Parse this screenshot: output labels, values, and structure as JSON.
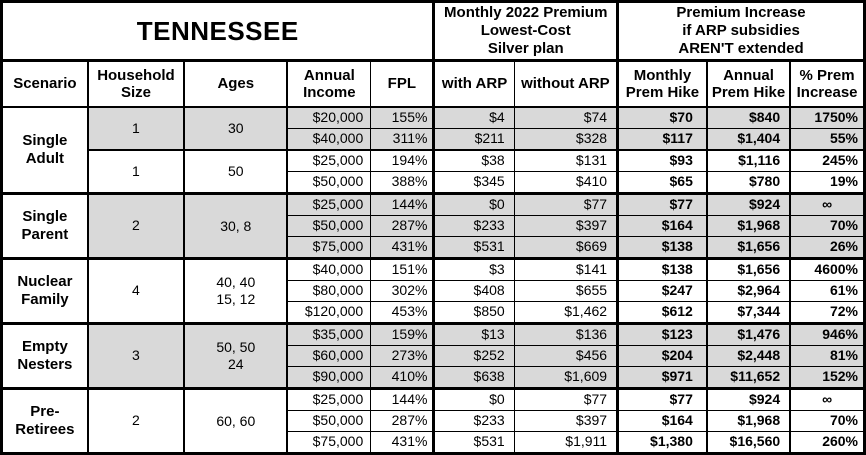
{
  "table": {
    "title": "TENNESSEE",
    "sections": {
      "premium": "Monthly 2022 Premium\nLowest-Cost\nSilver plan",
      "increase": "Premium Increase\nif ARP subsidies\nAREN'T extended"
    },
    "columns": [
      "Scenario",
      "Household\nSize",
      "Ages",
      "Annual\nIncome",
      "FPL",
      "with ARP",
      "without ARP",
      "Monthly\nPrem Hike",
      "Annual\nPrem Hike",
      "% Prem\nIncrease"
    ],
    "shade_color": "#d9d9d9",
    "groups": [
      {
        "scenario": "Single\nAdult",
        "subgroups": [
          {
            "size": "1",
            "ages": "30",
            "shaded": true,
            "rows": [
              {
                "income": "$20,000",
                "fpl": "155%",
                "with_arp": "$4",
                "without_arp": "$74",
                "monthly_hike": "$70",
                "annual_hike": "$840",
                "pct_increase": "1750%"
              },
              {
                "income": "$40,000",
                "fpl": "311%",
                "with_arp": "$211",
                "without_arp": "$328",
                "monthly_hike": "$117",
                "annual_hike": "$1,404",
                "pct_increase": "55%"
              }
            ]
          },
          {
            "size": "1",
            "ages": "50",
            "shaded": false,
            "rows": [
              {
                "income": "$25,000",
                "fpl": "194%",
                "with_arp": "$38",
                "without_arp": "$131",
                "monthly_hike": "$93",
                "annual_hike": "$1,116",
                "pct_increase": "245%"
              },
              {
                "income": "$50,000",
                "fpl": "388%",
                "with_arp": "$345",
                "without_arp": "$410",
                "monthly_hike": "$65",
                "annual_hike": "$780",
                "pct_increase": "19%"
              }
            ]
          }
        ]
      },
      {
        "scenario": "Single\nParent",
        "subgroups": [
          {
            "size": "2",
            "ages": "30, 8",
            "shaded": true,
            "rows": [
              {
                "income": "$25,000",
                "fpl": "144%",
                "with_arp": "$0",
                "without_arp": "$77",
                "monthly_hike": "$77",
                "annual_hike": "$924",
                "pct_increase": "∞"
              },
              {
                "income": "$50,000",
                "fpl": "287%",
                "with_arp": "$233",
                "without_arp": "$397",
                "monthly_hike": "$164",
                "annual_hike": "$1,968",
                "pct_increase": "70%"
              },
              {
                "income": "$75,000",
                "fpl": "431%",
                "with_arp": "$531",
                "without_arp": "$669",
                "monthly_hike": "$138",
                "annual_hike": "$1,656",
                "pct_increase": "26%"
              }
            ]
          }
        ]
      },
      {
        "scenario": "Nuclear\nFamily",
        "subgroups": [
          {
            "size": "4",
            "ages": "40, 40\n15, 12",
            "shaded": false,
            "rows": [
              {
                "income": "$40,000",
                "fpl": "151%",
                "with_arp": "$3",
                "without_arp": "$141",
                "monthly_hike": "$138",
                "annual_hike": "$1,656",
                "pct_increase": "4600%"
              },
              {
                "income": "$80,000",
                "fpl": "302%",
                "with_arp": "$408",
                "without_arp": "$655",
                "monthly_hike": "$247",
                "annual_hike": "$2,964",
                "pct_increase": "61%"
              },
              {
                "income": "$120,000",
                "fpl": "453%",
                "with_arp": "$850",
                "without_arp": "$1,462",
                "monthly_hike": "$612",
                "annual_hike": "$7,344",
                "pct_increase": "72%"
              }
            ]
          }
        ]
      },
      {
        "scenario": "Empty\nNesters",
        "subgroups": [
          {
            "size": "3",
            "ages": "50, 50\n24",
            "shaded": true,
            "rows": [
              {
                "income": "$35,000",
                "fpl": "159%",
                "with_arp": "$13",
                "without_arp": "$136",
                "monthly_hike": "$123",
                "annual_hike": "$1,476",
                "pct_increase": "946%"
              },
              {
                "income": "$60,000",
                "fpl": "273%",
                "with_arp": "$252",
                "without_arp": "$456",
                "monthly_hike": "$204",
                "annual_hike": "$2,448",
                "pct_increase": "81%"
              },
              {
                "income": "$90,000",
                "fpl": "410%",
                "with_arp": "$638",
                "without_arp": "$1,609",
                "monthly_hike": "$971",
                "annual_hike": "$11,652",
                "pct_increase": "152%"
              }
            ]
          }
        ]
      },
      {
        "scenario": "Pre-\nRetirees",
        "subgroups": [
          {
            "size": "2",
            "ages": "60, 60",
            "shaded": false,
            "rows": [
              {
                "income": "$25,000",
                "fpl": "144%",
                "with_arp": "$0",
                "without_arp": "$77",
                "monthly_hike": "$77",
                "annual_hike": "$924",
                "pct_increase": "∞"
              },
              {
                "income": "$50,000",
                "fpl": "287%",
                "with_arp": "$233",
                "without_arp": "$397",
                "monthly_hike": "$164",
                "annual_hike": "$1,968",
                "pct_increase": "70%"
              },
              {
                "income": "$75,000",
                "fpl": "431%",
                "with_arp": "$531",
                "without_arp": "$1,911",
                "monthly_hike": "$1,380",
                "annual_hike": "$16,560",
                "pct_increase": "260%"
              }
            ]
          }
        ]
      }
    ]
  }
}
